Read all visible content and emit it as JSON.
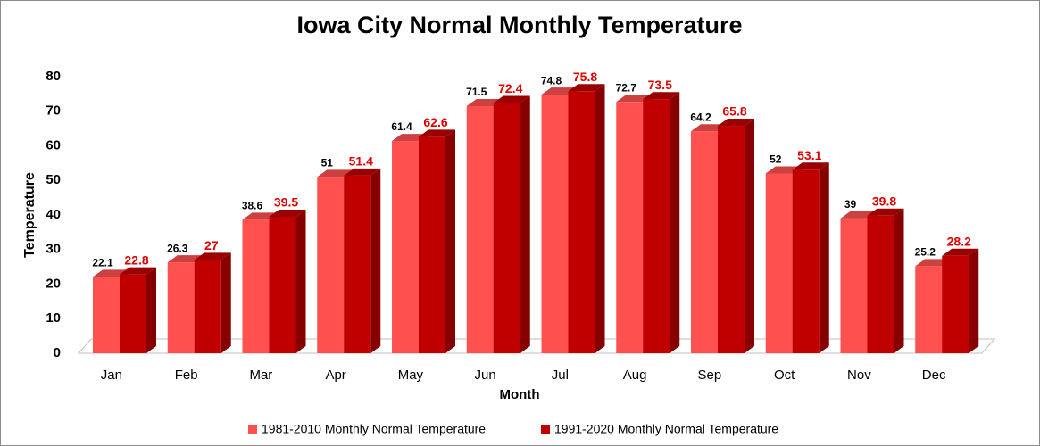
{
  "chart_data": {
    "type": "bar3d",
    "title": "Iowa City Normal Monthly Temperature",
    "x_label": "Month",
    "y_label": "Temperature",
    "categories": [
      "Jan",
      "Feb",
      "Mar",
      "Apr",
      "May",
      "Jun",
      "Jul",
      "Aug",
      "Sep",
      "Oct",
      "Nov",
      "Dec"
    ],
    "series": [
      {
        "name": "1981-2010 Monthly Normal Temperature",
        "color": "#ff5050",
        "label_color": "#000000",
        "values": [
          22.1,
          26.3,
          38.6,
          51,
          61.4,
          71.5,
          74.8,
          72.7,
          64.2,
          52,
          39,
          25.2
        ]
      },
      {
        "name": "1991-2020 Monthly Normal Temperature",
        "color": "#c00000",
        "label_color": "#e00000",
        "values": [
          22.8,
          27,
          39.5,
          51.4,
          62.6,
          72.4,
          75.8,
          73.5,
          65.8,
          53.1,
          39.8,
          28.2
        ]
      }
    ],
    "ylim": [
      0,
      80
    ],
    "yticks": [
      0,
      10,
      20,
      30,
      40,
      50,
      60,
      70,
      80
    ],
    "legend": "bottom"
  }
}
